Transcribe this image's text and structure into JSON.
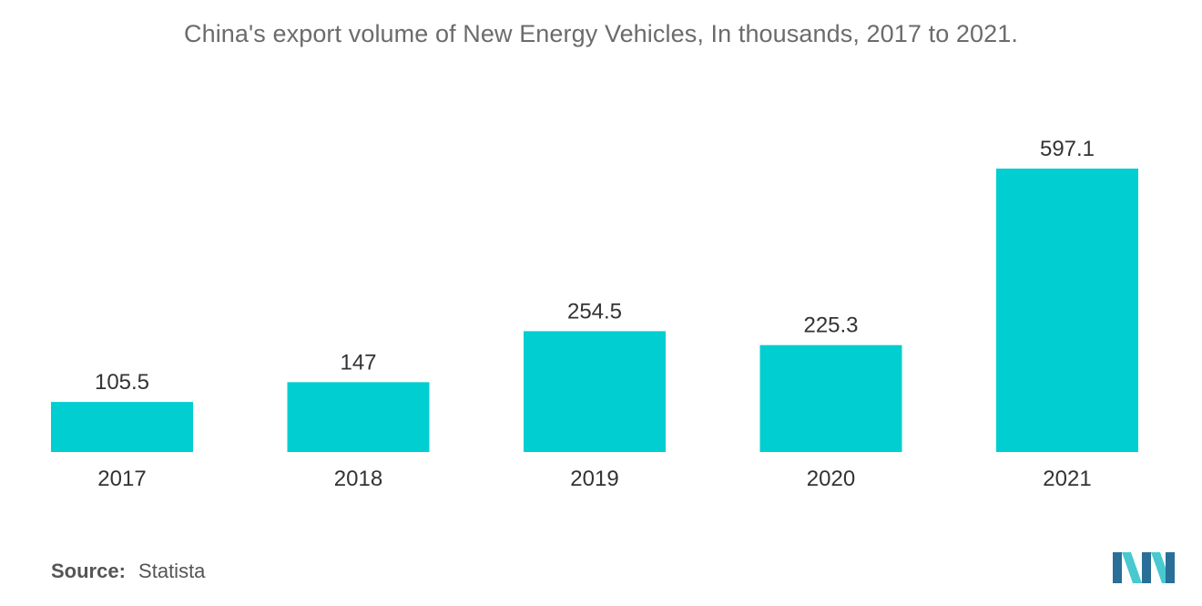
{
  "title": "China's export volume of New Energy Vehicles, In thousands, 2017 to 2021.",
  "source": {
    "label": "Source:",
    "value": "Statista"
  },
  "colors": {
    "bar": "#00CED1",
    "title": "#6b6b6b",
    "axis_text": "#333333",
    "logo_dark": "#2a6f97",
    "logo_light": "#48c9d0"
  },
  "logo": {
    "icon": "mordor-intelligence-logo"
  },
  "chart_data": {
    "type": "bar",
    "title": "China's export volume of New Energy Vehicles, In thousands, 2017 to 2021.",
    "categories": [
      "2017",
      "2018",
      "2019",
      "2020",
      "2021"
    ],
    "values": [
      105.5,
      147,
      254.5,
      225.3,
      597.1
    ],
    "value_labels": [
      "105.5",
      "147",
      "254.5",
      "225.3",
      "597.1"
    ],
    "xlabel": "",
    "ylabel": "",
    "ylim": [
      0,
      597.1
    ],
    "grid": false,
    "legend": "none"
  }
}
